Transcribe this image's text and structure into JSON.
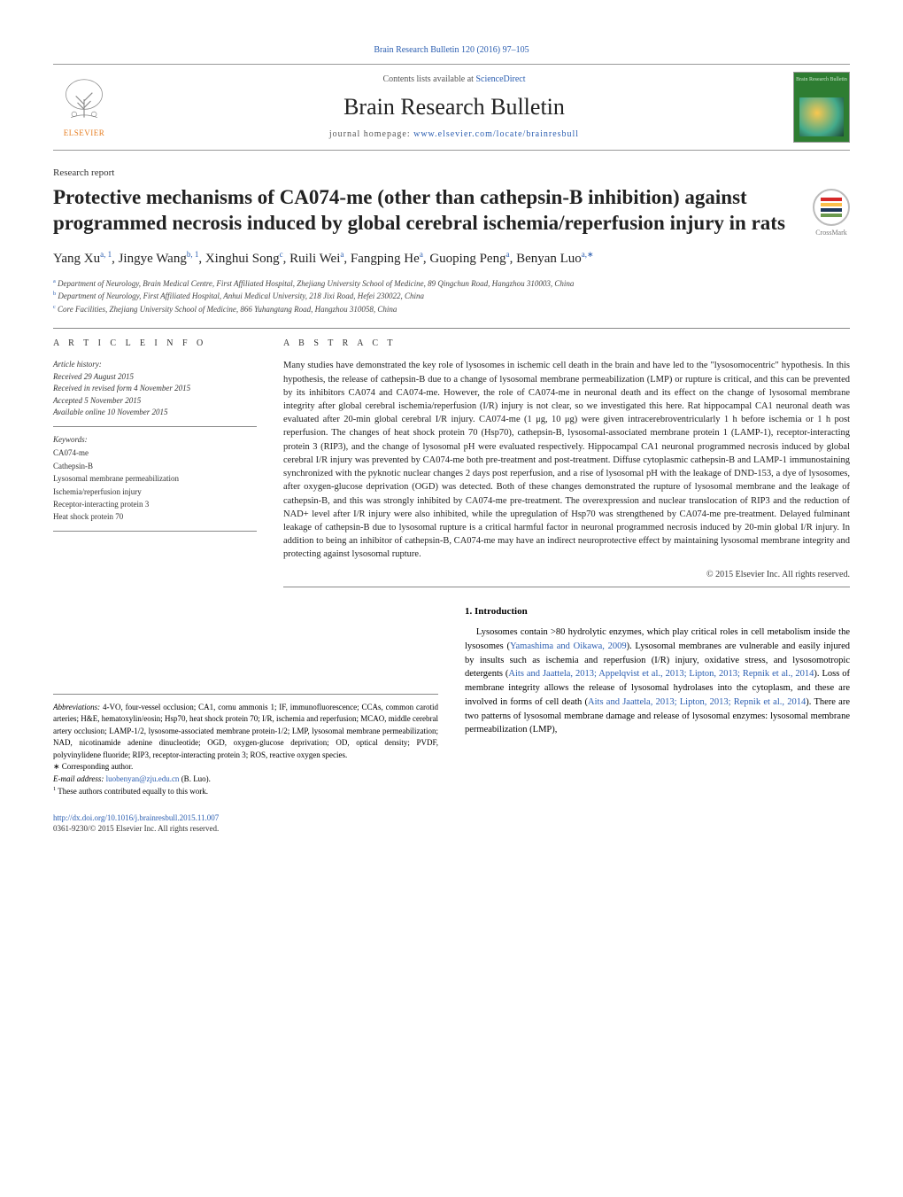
{
  "citation": {
    "journal_short": "Brain Research Bulletin",
    "volume_pages": "120 (2016) 97–105"
  },
  "header": {
    "contents_text": "Contents lists available at ",
    "contents_link": "ScienceDirect",
    "journal_title": "Brain Research Bulletin",
    "homepage_label": "journal homepage: ",
    "homepage_url": "www.elsevier.com/locate/brainresbull",
    "publisher": "ELSEVIER",
    "cover_label": "Brain Research Bulletin"
  },
  "article": {
    "type": "Research report",
    "title": "Protective mechanisms of CA074-me (other than cathepsin-B inhibition) against programmed necrosis induced by global cerebral ischemia/reperfusion injury in rats",
    "crossmark": "CrossMark"
  },
  "authors_html": "Yang Xu<sup>a, 1</sup>, Jingye Wang<sup>b, 1</sup>, Xinghui Song<sup>c</sup>, Ruili Wei<sup>a</sup>, Fangping He<sup>a</sup>, Guoping Peng<sup>a</sup>, Benyan Luo<sup>a,∗</sup>",
  "affiliations": [
    {
      "sup": "a",
      "text": "Department of Neurology, Brain Medical Centre, First Affiliated Hospital, Zhejiang University School of Medicine, 89 Qingchun Road, Hangzhou 310003, China"
    },
    {
      "sup": "b",
      "text": "Department of Neurology, First Affiliated Hospital, Anhui Medical University, 218 Jixi Road, Hefei 230022, China"
    },
    {
      "sup": "c",
      "text": "Core Facilities, Zhejiang University School of Medicine, 866 Yuhangtang Road, Hangzhou 310058, China"
    }
  ],
  "info": {
    "label": "a r t i c l e   i n f o",
    "history_label": "Article history:",
    "received": "Received 29 August 2015",
    "revised": "Received in revised form 4 November 2015",
    "accepted": "Accepted 5 November 2015",
    "online": "Available online 10 November 2015",
    "keywords_label": "Keywords:",
    "keywords": [
      "CA074-me",
      "Cathepsin-B",
      "Lysosomal membrane permeabilization",
      "Ischemia/reperfusion injury",
      "Receptor-interacting protein 3",
      "Heat shock protein 70"
    ]
  },
  "abstract": {
    "label": "a b s t r a c t",
    "text": "Many studies have demonstrated the key role of lysosomes in ischemic cell death in the brain and have led to the \"lysosomocentric\" hypothesis. In this hypothesis, the release of cathepsin-B due to a change of lysosomal membrane permeabilization (LMP) or rupture is critical, and this can be prevented by its inhibitors CA074 and CA074-me. However, the role of CA074-me in neuronal death and its effect on the change of lysosomal membrane integrity after global cerebral ischemia/reperfusion (I/R) injury is not clear, so we investigated this here. Rat hippocampal CA1 neuronal death was evaluated after 20-min global cerebral I/R injury. CA074-me (1 μg, 10 μg) were given intracerebroventricularly 1 h before ischemia or 1 h post reperfusion. The changes of heat shock protein 70 (Hsp70), cathepsin-B, lysosomal-associated membrane protein 1 (LAMP-1), receptor-interacting protein 3 (RIP3), and the change of lysosomal pH were evaluated respectively. Hippocampal CA1 neuronal programmed necrosis induced by global cerebral I/R injury was prevented by CA074-me both pre-treatment and post-treatment. Diffuse cytoplasmic cathepsin-B and LAMP-1 immunostaining synchronized with the pyknotic nuclear changes 2 days post reperfusion, and a rise of lysosomal pH with the leakage of DND-153, a dye of lysosomes, after oxygen-glucose deprivation (OGD) was detected. Both of these changes demonstrated the rupture of lysosomal membrane and the leakage of cathepsin-B, and this was strongly inhibited by CA074-me pre-treatment. The overexpression and nuclear translocation of RIP3 and the reduction of NAD+ level after I/R injury were also inhibited, while the upregulation of Hsp70 was strengthened by CA074-me pre-treatment. Delayed fulminant leakage of cathepsin-B due to lysosomal rupture is a critical harmful factor in neuronal programmed necrosis induced by 20-min global I/R injury. In addition to being an inhibitor of cathepsin-B, CA074-me may have an indirect neuroprotective effect by maintaining lysosomal membrane integrity and protecting against lysosomal rupture.",
    "copyright": "© 2015 Elsevier Inc. All rights reserved."
  },
  "intro": {
    "heading": "1. Introduction",
    "para": "Lysosomes contain >80 hydrolytic enzymes, which play critical roles in cell metabolism inside the lysosomes (Yamashima and Oikawa, 2009). Lysosomal membranes are vulnerable and easily injured by insults such as ischemia and reperfusion (I/R) injury, oxidative stress, and lysosomotropic detergents (Aits and Jaattela, 2013; Appelqvist et al., 2013; Lipton, 2013; Repnik et al., 2014). Loss of membrane integrity allows the release of lysosomal hydrolases into the cytoplasm, and these are involved in forms of cell death (Aits and Jaattela, 2013; Lipton, 2013; Repnik et al., 2014). There are two patterns of lysosomal membrane damage and release of lysosomal enzymes: lysosomal membrane permeabilization (LMP),"
  },
  "footnotes": {
    "abbrev_label": "Abbreviations:",
    "abbrev_text": "4-VO, four-vessel occlusion; CA1, cornu ammonis 1; IF, immunofluorescence; CCAs, common carotid arteries; H&E, hematoxylin/eosin; Hsp70, heat shock protein 70; I/R, ischemia and reperfusion; MCAO, middle cerebral artery occlusion; LAMP-1/2, lysosome-associated membrane protein-1/2; LMP, lysosomal membrane permeabilization; NAD, nicotinamide adenine dinucleotide; OGD, oxygen-glucose deprivation; OD, optical density; PVDF, polyvinylidene fluoride; RIP3, receptor-interacting protein 3; ROS, reactive oxygen species.",
    "corr_label": "∗ Corresponding author.",
    "email_label": "E-mail address: ",
    "email": "luobenyan@zju.edu.cn",
    "email_name": " (B. Luo).",
    "equal": "1 These authors contributed equally to this work."
  },
  "doi": {
    "url": "http://dx.doi.org/10.1016/j.brainresbull.2015.11.007",
    "issn_copyright": "0361-9230/© 2015 Elsevier Inc. All rights reserved."
  },
  "colors": {
    "link": "#2a5db0",
    "orange": "#e67e22",
    "rule": "#888888"
  }
}
